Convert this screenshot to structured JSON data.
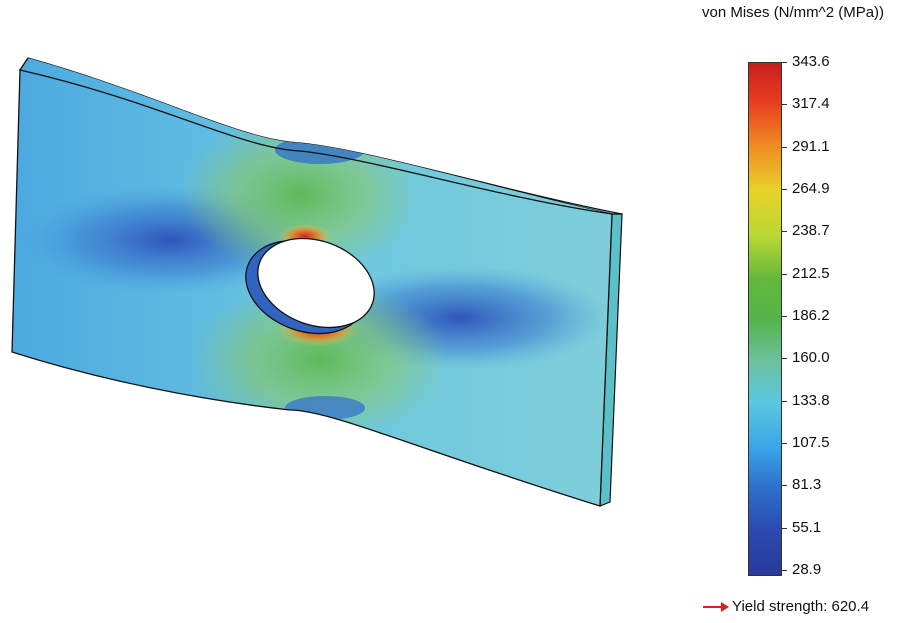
{
  "legend": {
    "title": "von Mises (N/mm^2 (MPa))",
    "ticks": [
      "343.6",
      "317.4",
      "291.1",
      "264.9",
      "238.7",
      "212.5",
      "186.2",
      "160.0",
      "133.8",
      "107.5",
      "81.3",
      "55.1",
      "28.9"
    ],
    "colors": [
      "#c81e1e",
      "#e8401f",
      "#f08a22",
      "#e8d22a",
      "#b8d834",
      "#64b83c",
      "#54b44a",
      "#6cc09a",
      "#5cc8e0",
      "#3aa6e8",
      "#2e6fcc",
      "#2a4bb2",
      "#2a3a9a"
    ]
  },
  "yield_strength": {
    "label": "Yield strength: 620.4",
    "arrow_color": "#e02020",
    "icon": "arrow-right-icon"
  },
  "plate": {
    "base_color": "#6cc7e0",
    "edge_color": "#60c0c8",
    "outline_color": "#111111"
  }
}
